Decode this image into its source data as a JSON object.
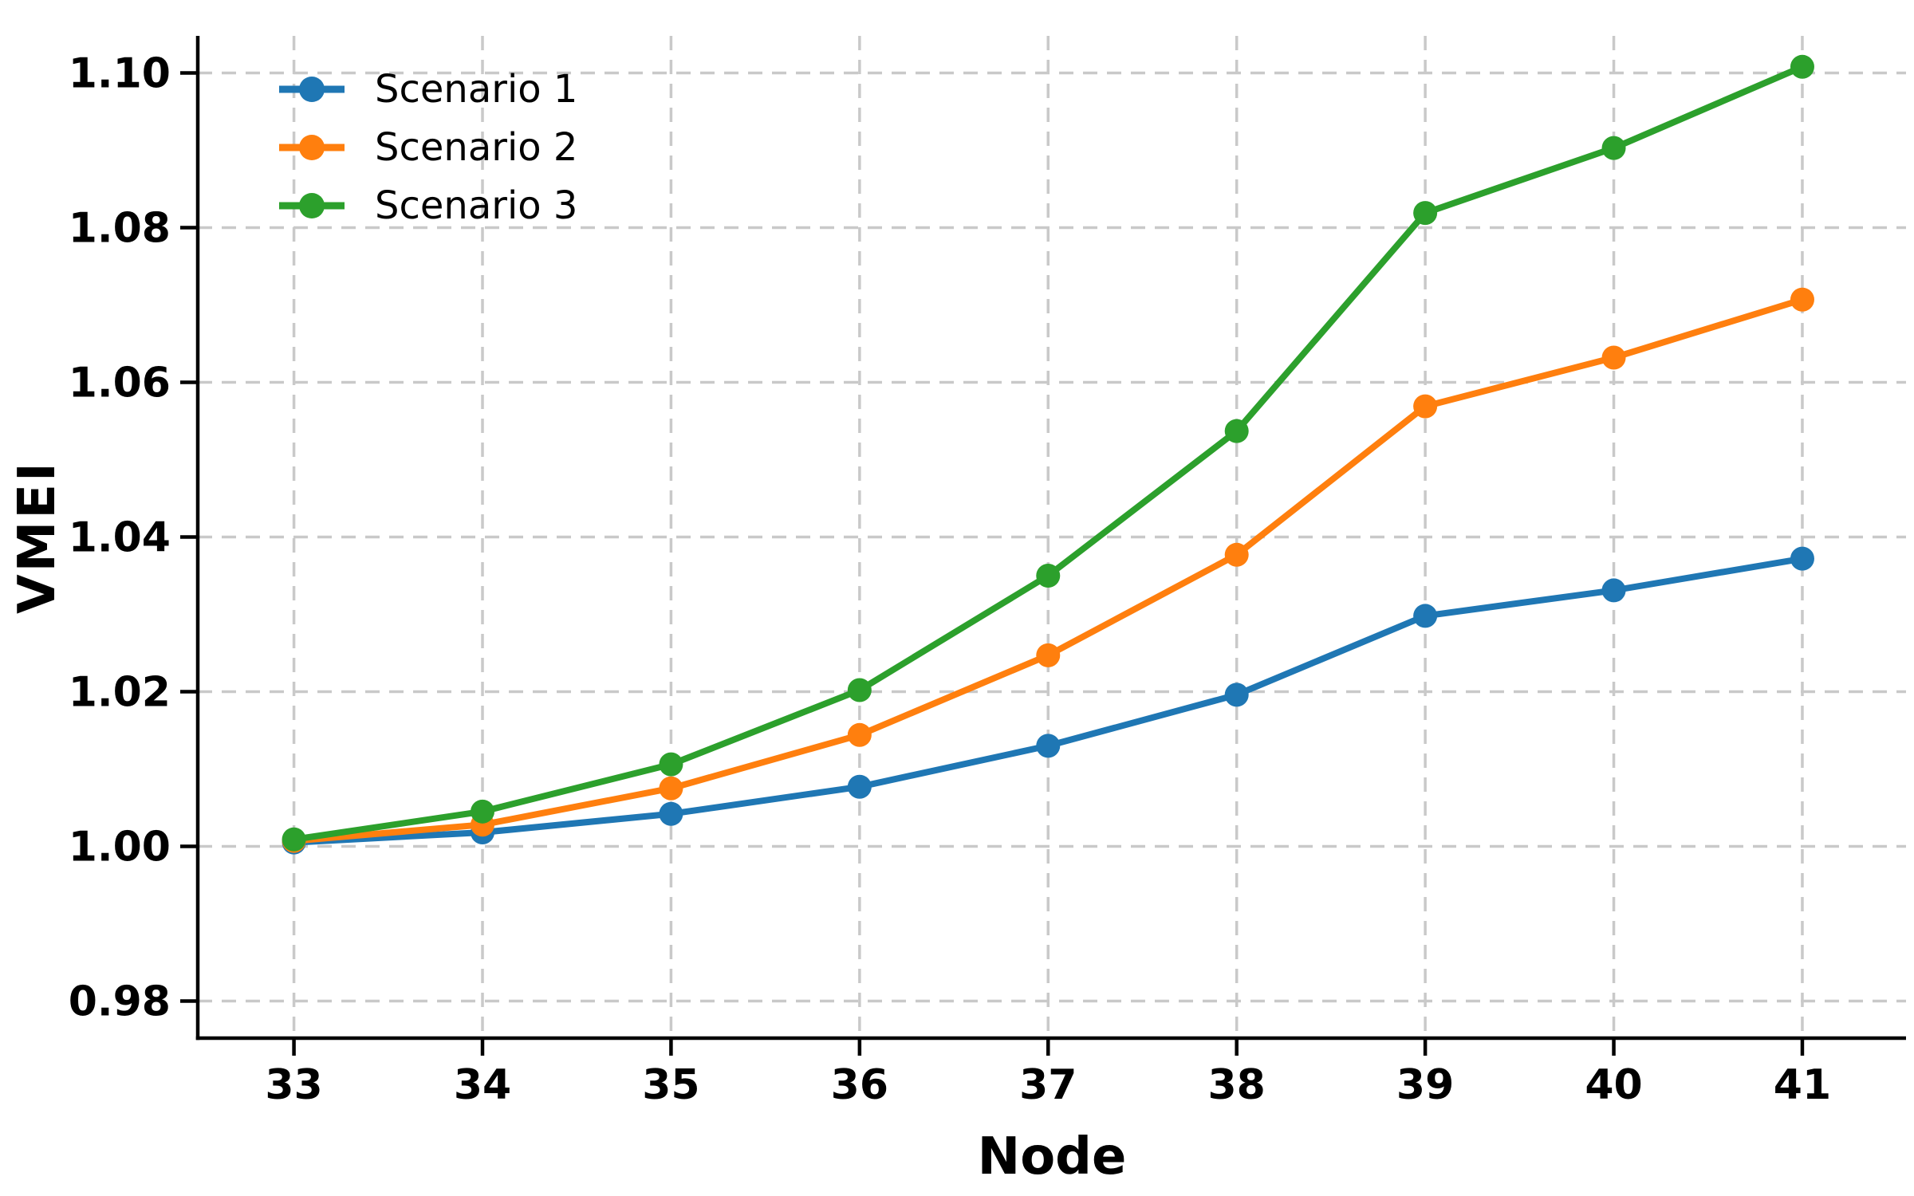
{
  "figure": {
    "background": "#ffffff"
  },
  "chart_data": {
    "type": "line",
    "title": "",
    "xlabel": "Node",
    "ylabel": "VMEI",
    "x": [
      33,
      34,
      35,
      36,
      37,
      38,
      39,
      40,
      41
    ],
    "series": [
      {
        "name": "Scenario 1",
        "color": "#1f77b4",
        "values": [
          1.0005,
          1.0018,
          1.0042,
          1.0077,
          1.013,
          1.0196,
          1.0298,
          1.0331,
          1.0372
        ]
      },
      {
        "name": "Scenario 2",
        "color": "#ff7f0e",
        "values": [
          1.0007,
          1.0028,
          1.0075,
          1.0144,
          1.0247,
          1.0377,
          1.0569,
          1.0632,
          1.0707
        ]
      },
      {
        "name": "Scenario 3",
        "color": "#2ca02c",
        "values": [
          1.0009,
          1.0045,
          1.0106,
          1.0202,
          1.035,
          1.0537,
          1.0819,
          1.0903,
          1.1008
        ]
      }
    ],
    "x_tick_labels": [
      "33",
      "34",
      "35",
      "36",
      "37",
      "38",
      "39",
      "40",
      "41"
    ],
    "y_ticks": [
      0.98,
      1.0,
      1.02,
      1.04,
      1.06,
      1.08,
      1.1
    ],
    "y_tick_labels": [
      "0.98",
      "1.00",
      "1.02",
      "1.04",
      "1.06",
      "1.08",
      "1.10"
    ],
    "xlim": [
      32.49,
      41.55
    ],
    "ylim": [
      0.9752,
      1.1048
    ],
    "grid": true,
    "grid_color": "#c9c9c9",
    "axis_color": "#000000",
    "legend_position": "upper-left",
    "marker": "circle"
  }
}
